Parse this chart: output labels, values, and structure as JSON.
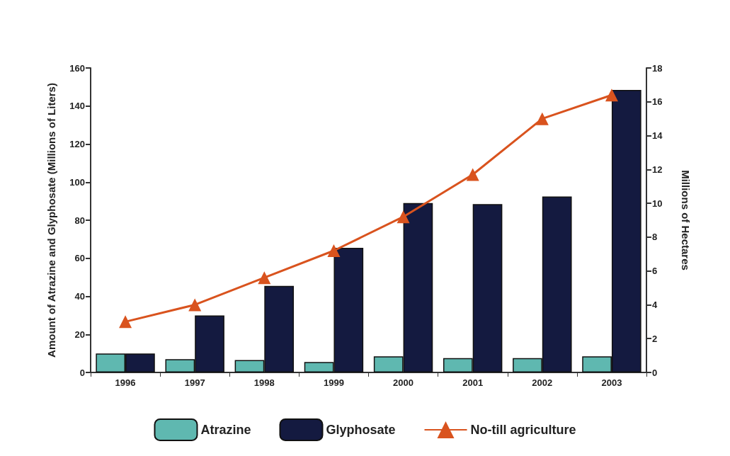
{
  "chart_data": {
    "type": "bar",
    "ylabel": "Amount of Atrazine and Glyphosate (Millions of Liters)",
    "y2label": "Millions of Hectares",
    "categories": [
      "1996",
      "1997",
      "1998",
      "1999",
      "2000",
      "2001",
      "2002",
      "2003"
    ],
    "series": [
      {
        "name": "Atrazine",
        "color": "#5fb8b0",
        "values": [
          10,
          7,
          6.5,
          5.5,
          8.5,
          7.5,
          7.5,
          8.5
        ]
      },
      {
        "name": "Glyphosate",
        "color": "#141a40",
        "values": [
          10,
          30,
          45.5,
          65.5,
          89,
          88.5,
          92.5,
          148.5
        ]
      },
      {
        "name": "No-till agriculture",
        "type": "line",
        "axis": "y2",
        "color": "#d9531e",
        "marker": "triangle",
        "values": [
          3,
          4,
          5.6,
          7.2,
          9.2,
          11.7,
          15,
          16.4
        ]
      }
    ],
    "ylim": [
      0,
      160
    ],
    "yticks": [
      0,
      20,
      40,
      60,
      80,
      100,
      120,
      140,
      160
    ],
    "y2lim": [
      0,
      18
    ],
    "y2ticks": [
      0,
      2,
      4,
      6,
      8,
      10,
      12,
      14,
      16,
      18
    ],
    "grid": false,
    "legend": "bottom"
  }
}
